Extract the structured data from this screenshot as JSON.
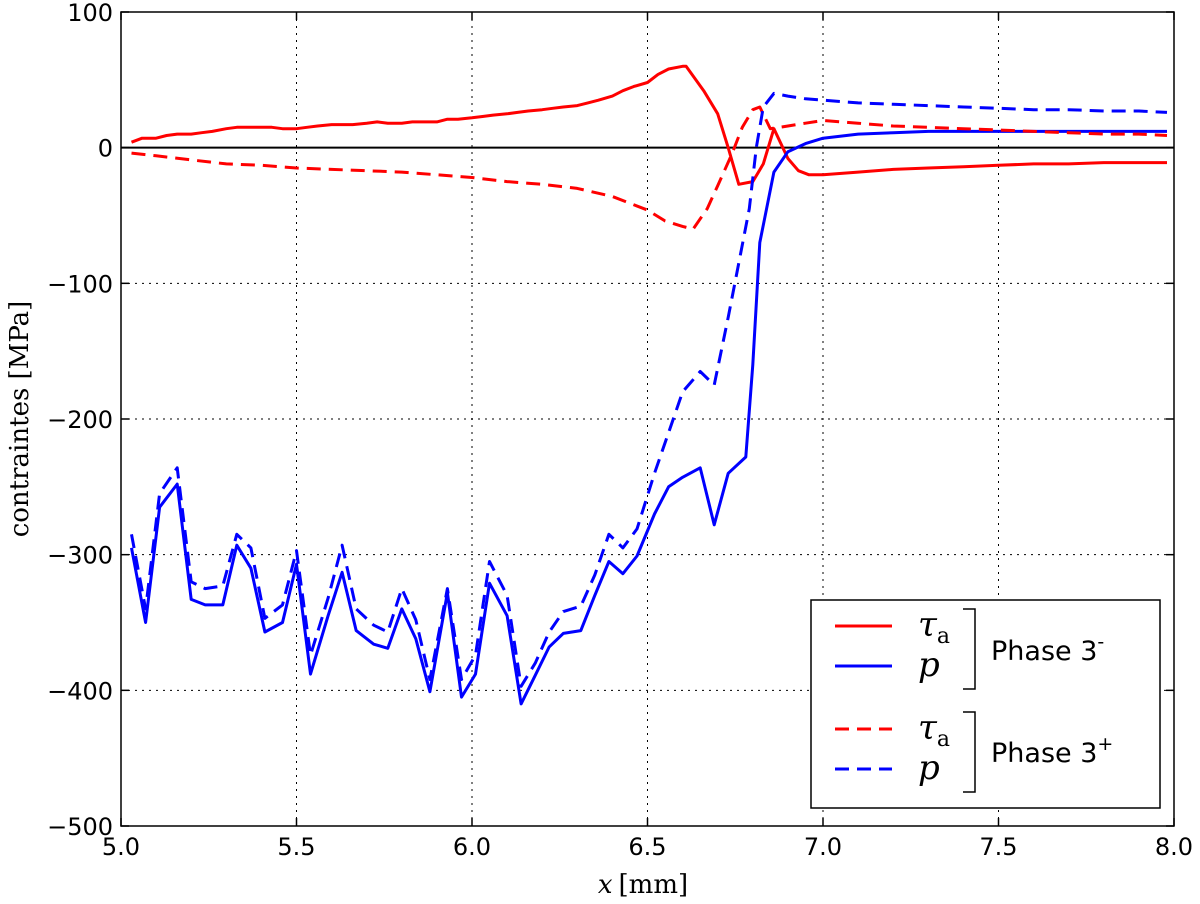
{
  "chart_data": {
    "type": "line",
    "xlabel_var": "x",
    "xlabel_unit": "[mm]",
    "ylabel": "contraintes [MPa]",
    "xlim": [
      5.0,
      8.0
    ],
    "ylim": [
      -500,
      100
    ],
    "xticks": [
      "5.0",
      "5.5",
      "6.0",
      "6.5",
      "7.0",
      "7.5",
      "8.0"
    ],
    "xtick_values": [
      5.0,
      5.5,
      6.0,
      6.5,
      7.0,
      7.5,
      8.0
    ],
    "yticks": [
      "100",
      "0",
      "−100",
      "−200",
      "−300",
      "−400",
      "−500"
    ],
    "ytick_values": [
      100,
      0,
      -100,
      -200,
      -300,
      -400,
      -500
    ],
    "grid": true,
    "zero_line": true,
    "legend_position": "lower right",
    "series": [
      {
        "symbol": "τ",
        "subscript": "a",
        "phase": "3-",
        "color": "#ff0000",
        "dash": "solid",
        "x": [
          5.03,
          5.06,
          5.1,
          5.13,
          5.16,
          5.2,
          5.23,
          5.26,
          5.3,
          5.33,
          5.36,
          5.4,
          5.43,
          5.46,
          5.5,
          5.53,
          5.56,
          5.6,
          5.63,
          5.66,
          5.7,
          5.73,
          5.76,
          5.8,
          5.83,
          5.86,
          5.9,
          5.93,
          5.96,
          6.0,
          6.03,
          6.06,
          6.1,
          6.13,
          6.16,
          6.2,
          6.23,
          6.26,
          6.3,
          6.33,
          6.36,
          6.4,
          6.43,
          6.46,
          6.5,
          6.53,
          6.56,
          6.6,
          6.61,
          6.66,
          6.7,
          6.73,
          6.76,
          6.8,
          6.83,
          6.86,
          6.9,
          6.93,
          6.96,
          7.0,
          7.1,
          7.2,
          7.3,
          7.4,
          7.5,
          7.6,
          7.7,
          7.8,
          7.9,
          7.98
        ],
        "y": [
          4,
          7,
          7,
          9,
          10,
          10,
          11,
          12,
          14,
          15,
          15,
          15,
          15,
          14,
          14,
          15,
          16,
          17,
          17,
          17,
          18,
          19,
          18,
          18,
          19,
          19,
          19,
          21,
          21,
          22,
          23,
          24,
          25,
          26,
          27,
          28,
          29,
          30,
          31,
          33,
          35,
          38,
          42,
          45,
          48,
          54,
          58,
          60,
          60,
          42,
          25,
          0,
          -27,
          -25,
          -12,
          14,
          -8,
          -17,
          -20,
          -20,
          -18,
          -16,
          -15,
          -14,
          -13,
          -12,
          -12,
          -11,
          -11,
          -11
        ]
      },
      {
        "symbol": "p",
        "subscript": "",
        "phase": "3-",
        "color": "#0000ff",
        "dash": "solid",
        "x": [
          5.03,
          5.07,
          5.11,
          5.16,
          5.2,
          5.24,
          5.29,
          5.33,
          5.37,
          5.41,
          5.46,
          5.5,
          5.54,
          5.59,
          5.63,
          5.67,
          5.72,
          5.76,
          5.8,
          5.84,
          5.88,
          5.93,
          5.97,
          6.01,
          6.05,
          6.1,
          6.14,
          6.18,
          6.22,
          6.26,
          6.31,
          6.35,
          6.39,
          6.43,
          6.47,
          6.52,
          6.56,
          6.6,
          6.65,
          6.69,
          6.73,
          6.78,
          6.8,
          6.82,
          6.86,
          6.9,
          6.95,
          7.0,
          7.1,
          7.2,
          7.3,
          7.4,
          7.5,
          7.6,
          7.7,
          7.8,
          7.9,
          7.98
        ],
        "y": [
          -295,
          -350,
          -265,
          -248,
          -333,
          -337,
          -337,
          -293,
          -310,
          -357,
          -350,
          -307,
          -388,
          -345,
          -313,
          -356,
          -366,
          -369,
          -340,
          -362,
          -401,
          -328,
          -405,
          -388,
          -321,
          -345,
          -410,
          -389,
          -368,
          -358,
          -356,
          -330,
          -305,
          -314,
          -301,
          -270,
          -250,
          -243,
          -236,
          -278,
          -240,
          -228,
          -160,
          -70,
          -18,
          -3,
          3,
          7,
          10,
          11,
          12,
          12,
          12,
          12,
          12,
          12,
          12,
          12
        ]
      },
      {
        "symbol": "τ",
        "subscript": "a",
        "phase": "3+",
        "color": "#ff0000",
        "dash": "dashed",
        "x": [
          5.03,
          5.1,
          5.2,
          5.3,
          5.4,
          5.5,
          5.6,
          5.7,
          5.8,
          5.9,
          6.0,
          6.1,
          6.2,
          6.3,
          6.4,
          6.5,
          6.55,
          6.6,
          6.63,
          6.67,
          6.7,
          6.74,
          6.77,
          6.8,
          6.82,
          6.85,
          6.9,
          6.95,
          7.0,
          7.1,
          7.2,
          7.3,
          7.4,
          7.5,
          7.6,
          7.7,
          7.8,
          7.9,
          7.98
        ],
        "y": [
          -4,
          -6,
          -9,
          -12,
          -13,
          -15,
          -16,
          -17,
          -18,
          -20,
          -22,
          -25,
          -27,
          -30,
          -36,
          -46,
          -54,
          -58,
          -60,
          -45,
          -28,
          -5,
          15,
          28,
          30,
          14,
          16,
          18,
          20,
          18,
          16,
          15,
          14,
          13,
          12,
          11,
          10,
          10,
          9
        ]
      },
      {
        "symbol": "p",
        "subscript": "",
        "phase": "3+",
        "color": "#0000ff",
        "dash": "dashed",
        "x": [
          5.03,
          5.07,
          5.11,
          5.16,
          5.2,
          5.24,
          5.29,
          5.33,
          5.37,
          5.41,
          5.46,
          5.5,
          5.54,
          5.59,
          5.63,
          5.67,
          5.72,
          5.76,
          5.8,
          5.84,
          5.88,
          5.93,
          5.97,
          6.01,
          6.05,
          6.1,
          6.14,
          6.18,
          6.22,
          6.26,
          6.31,
          6.35,
          6.39,
          6.43,
          6.47,
          6.52,
          6.56,
          6.6,
          6.65,
          6.69,
          6.73,
          6.76,
          6.79,
          6.81,
          6.83,
          6.86,
          6.9,
          6.95,
          7.0,
          7.1,
          7.2,
          7.3,
          7.4,
          7.5,
          7.6,
          7.7,
          7.8,
          7.9,
          7.98
        ],
        "y": [
          -285,
          -340,
          -255,
          -236,
          -320,
          -325,
          -323,
          -285,
          -295,
          -347,
          -337,
          -297,
          -374,
          -332,
          -293,
          -340,
          -352,
          -357,
          -325,
          -348,
          -392,
          -325,
          -392,
          -374,
          -305,
          -330,
          -397,
          -380,
          -357,
          -342,
          -338,
          -315,
          -285,
          -295,
          -281,
          -240,
          -210,
          -180,
          -165,
          -175,
          -125,
          -85,
          -45,
          0,
          30,
          40,
          38,
          36,
          35,
          33,
          32,
          31,
          30,
          29,
          28,
          28,
          27,
          27,
          26
        ]
      }
    ]
  },
  "legend": {
    "groups": [
      {
        "label_main": "Phase 3",
        "label_sup": "-",
        "entries": [
          {
            "symbol": "τ",
            "subscript": "a",
            "color": "#ff0000",
            "dash": "solid"
          },
          {
            "symbol": "p",
            "subscript": "",
            "color": "#0000ff",
            "dash": "solid"
          }
        ]
      },
      {
        "label_main": "Phase 3",
        "label_sup": "+",
        "entries": [
          {
            "symbol": "τ",
            "subscript": "a",
            "color": "#ff0000",
            "dash": "dashed"
          },
          {
            "symbol": "p",
            "subscript": "",
            "color": "#0000ff",
            "dash": "dashed"
          }
        ]
      }
    ]
  }
}
